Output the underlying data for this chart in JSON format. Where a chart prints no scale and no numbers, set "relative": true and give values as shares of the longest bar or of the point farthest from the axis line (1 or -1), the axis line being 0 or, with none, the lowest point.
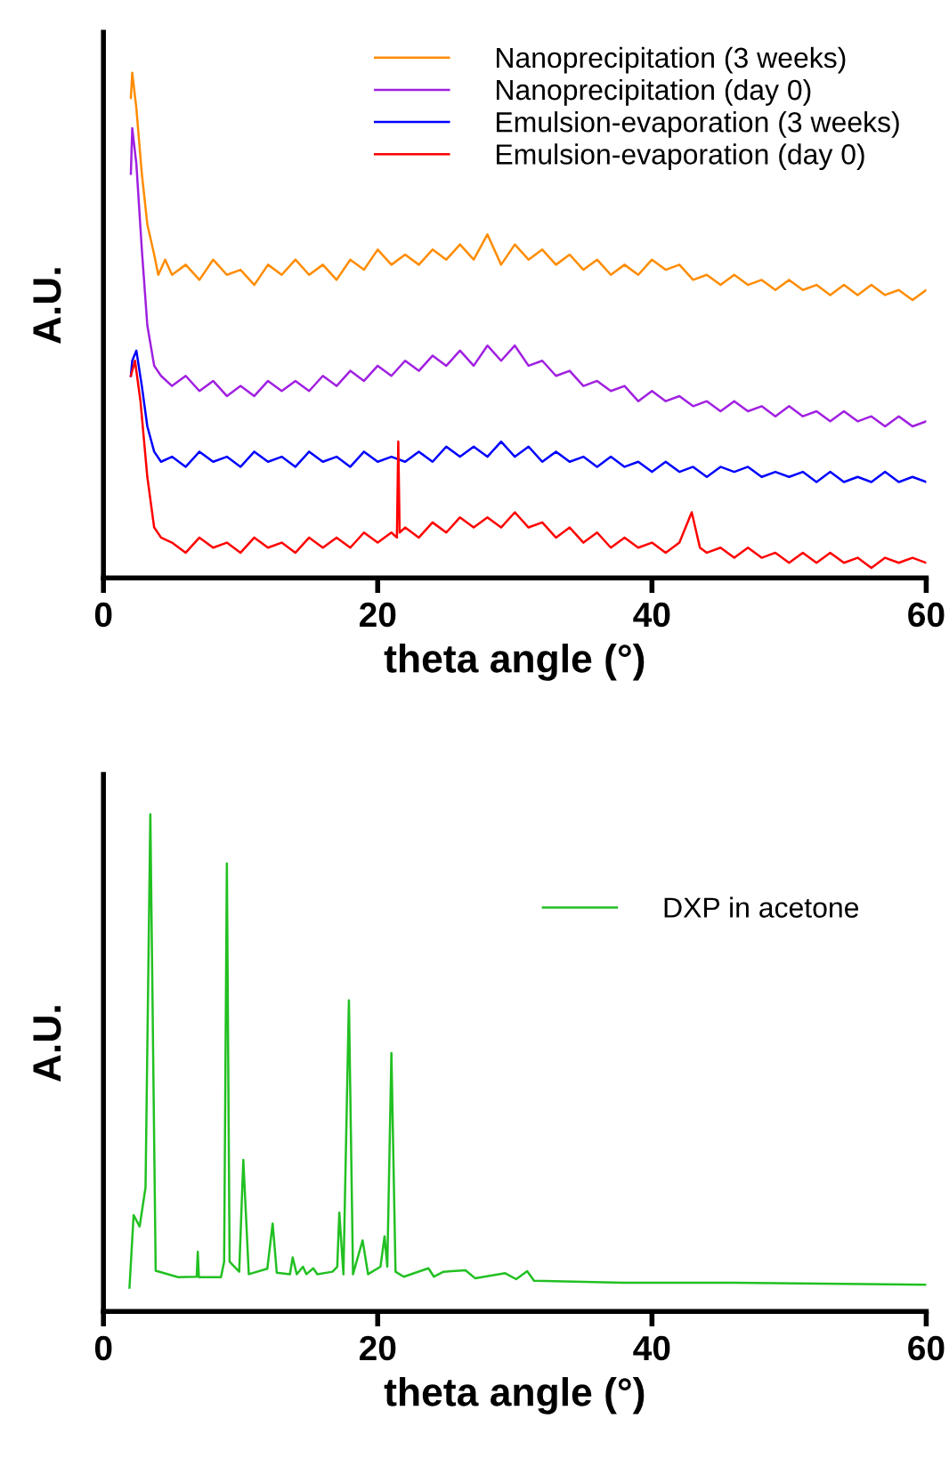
{
  "chart_data": [
    {
      "type": "line",
      "relative": true,
      "xlabel": "theta angle (°)",
      "ylabel": "A.U.",
      "xlim": [
        0,
        60
      ],
      "xticks": [
        0,
        20,
        40,
        60
      ],
      "grid": false,
      "legend": "top right",
      "marker": "none",
      "line_style": "solid",
      "series": [
        {
          "name": "Nanoprecipitation (3 weeks)",
          "color": "#ff8c00",
          "x": [
            2.0,
            2.1,
            2.4,
            2.8,
            3.2,
            3.7,
            4.0,
            4.5,
            5,
            6,
            7,
            8,
            9,
            10,
            11,
            12,
            13,
            14,
            15,
            16,
            17,
            18,
            19,
            20,
            21,
            22,
            23,
            24,
            25,
            26,
            27,
            28,
            29,
            30,
            31,
            32,
            33,
            34,
            35,
            36,
            37,
            38,
            39,
            40,
            41,
            42,
            43,
            44,
            45,
            46,
            47,
            48,
            49,
            50,
            51,
            52,
            53,
            54,
            55,
            56,
            57,
            58,
            59,
            60
          ],
          "values": [
            0.95,
            1.0,
            0.93,
            0.8,
            0.7,
            0.64,
            0.6,
            0.63,
            0.6,
            0.62,
            0.59,
            0.63,
            0.6,
            0.61,
            0.58,
            0.62,
            0.6,
            0.63,
            0.6,
            0.62,
            0.59,
            0.63,
            0.61,
            0.65,
            0.62,
            0.64,
            0.62,
            0.65,
            0.63,
            0.66,
            0.63,
            0.68,
            0.62,
            0.66,
            0.63,
            0.65,
            0.62,
            0.64,
            0.61,
            0.63,
            0.6,
            0.62,
            0.6,
            0.63,
            0.61,
            0.62,
            0.59,
            0.6,
            0.58,
            0.6,
            0.58,
            0.59,
            0.57,
            0.59,
            0.57,
            0.58,
            0.56,
            0.58,
            0.56,
            0.58,
            0.56,
            0.57,
            0.55,
            0.57
          ]
        },
        {
          "name": "Nanoprecipitation (day 0)",
          "color": "#a020e0",
          "x": [
            2.0,
            2.1,
            2.4,
            2.8,
            3.2,
            3.7,
            4.2,
            5,
            6,
            7,
            8,
            9,
            10,
            11,
            12,
            13,
            14,
            15,
            16,
            17,
            18,
            19,
            20,
            21,
            22,
            23,
            24,
            25,
            26,
            27,
            28,
            29,
            30,
            31,
            32,
            33,
            34,
            35,
            36,
            37,
            38,
            39,
            40,
            41,
            42,
            43,
            44,
            45,
            46,
            47,
            48,
            49,
            50,
            51,
            52,
            53,
            54,
            55,
            56,
            57,
            58,
            59,
            60
          ],
          "values": [
            0.8,
            0.89,
            0.82,
            0.65,
            0.5,
            0.42,
            0.4,
            0.38,
            0.4,
            0.37,
            0.39,
            0.36,
            0.38,
            0.36,
            0.39,
            0.37,
            0.39,
            0.37,
            0.4,
            0.38,
            0.41,
            0.39,
            0.42,
            0.4,
            0.43,
            0.41,
            0.44,
            0.42,
            0.45,
            0.42,
            0.46,
            0.43,
            0.46,
            0.42,
            0.43,
            0.4,
            0.41,
            0.38,
            0.39,
            0.37,
            0.38,
            0.35,
            0.37,
            0.35,
            0.36,
            0.34,
            0.35,
            0.33,
            0.35,
            0.33,
            0.34,
            0.32,
            0.34,
            0.32,
            0.33,
            0.31,
            0.33,
            0.31,
            0.32,
            0.3,
            0.32,
            0.3,
            0.31
          ]
        },
        {
          "name": "Emulsion-evaporation (3 weeks)",
          "color": "#0000ff",
          "x": [
            2.0,
            2.1,
            2.4,
            2.8,
            3.2,
            3.7,
            4.2,
            5,
            6,
            7,
            8,
            9,
            10,
            11,
            12,
            13,
            14,
            15,
            16,
            17,
            18,
            19,
            20,
            21,
            22,
            23,
            24,
            25,
            26,
            27,
            28,
            29,
            30,
            31,
            32,
            33,
            34,
            35,
            36,
            37,
            38,
            39,
            40,
            41,
            42,
            43,
            44,
            45,
            46,
            47,
            48,
            49,
            50,
            51,
            52,
            53,
            54,
            55,
            56,
            57,
            58,
            59,
            60
          ],
          "values": [
            0.4,
            0.43,
            0.45,
            0.38,
            0.3,
            0.25,
            0.23,
            0.24,
            0.22,
            0.25,
            0.23,
            0.24,
            0.22,
            0.25,
            0.23,
            0.24,
            0.22,
            0.25,
            0.23,
            0.24,
            0.22,
            0.25,
            0.23,
            0.24,
            0.23,
            0.25,
            0.23,
            0.26,
            0.24,
            0.26,
            0.24,
            0.27,
            0.24,
            0.26,
            0.23,
            0.25,
            0.23,
            0.24,
            0.22,
            0.24,
            0.22,
            0.23,
            0.21,
            0.23,
            0.21,
            0.22,
            0.2,
            0.22,
            0.21,
            0.22,
            0.2,
            0.21,
            0.2,
            0.21,
            0.19,
            0.21,
            0.19,
            0.2,
            0.19,
            0.21,
            0.19,
            0.2,
            0.19
          ]
        },
        {
          "name": "Emulsion-evaporation (day 0)",
          "color": "#ff0000",
          "x": [
            2.0,
            2.3,
            2.7,
            3.2,
            3.7,
            4.2,
            5,
            6,
            7,
            8,
            9,
            10,
            11,
            12,
            13,
            14,
            15,
            16,
            17,
            18,
            19,
            20,
            21,
            21.4,
            21.5,
            21.6,
            22,
            23,
            24,
            25,
            26,
            27,
            28,
            29,
            30,
            31,
            32,
            33,
            34,
            35,
            36,
            37,
            38,
            39,
            40,
            41,
            42,
            42.9,
            43.5,
            44,
            45,
            46,
            47,
            48,
            49,
            50,
            51,
            52,
            53,
            54,
            55,
            56,
            57,
            58,
            59,
            60
          ],
          "values": [
            0.4,
            0.43,
            0.35,
            0.2,
            0.1,
            0.08,
            0.07,
            0.05,
            0.08,
            0.06,
            0.07,
            0.05,
            0.08,
            0.06,
            0.07,
            0.05,
            0.08,
            0.06,
            0.08,
            0.06,
            0.09,
            0.07,
            0.09,
            0.08,
            0.27,
            0.09,
            0.1,
            0.08,
            0.11,
            0.09,
            0.12,
            0.1,
            0.12,
            0.1,
            0.13,
            0.1,
            0.11,
            0.08,
            0.1,
            0.07,
            0.09,
            0.06,
            0.08,
            0.06,
            0.07,
            0.05,
            0.07,
            0.13,
            0.06,
            0.05,
            0.06,
            0.04,
            0.06,
            0.04,
            0.05,
            0.03,
            0.05,
            0.03,
            0.05,
            0.03,
            0.04,
            0.02,
            0.04,
            0.03,
            0.04,
            0.03
          ]
        }
      ]
    },
    {
      "type": "line",
      "relative": true,
      "xlabel": "theta angle (°)",
      "ylabel": "A.U.",
      "xlim": [
        0,
        60
      ],
      "xticks": [
        0,
        20,
        40,
        60
      ],
      "grid": false,
      "legend": "top right",
      "marker": "none",
      "line_style": "solid",
      "series": [
        {
          "name": "DXP in acetone",
          "color": "#22c022",
          "x": [
            1.9,
            2.2,
            2.64,
            3.07,
            3.42,
            3.81,
            5.45,
            6.8,
            6.88,
            6.96,
            8.57,
            8.8,
            9.0,
            9.2,
            9.9,
            10.2,
            10.6,
            11.95,
            12.34,
            12.64,
            13.6,
            13.8,
            14.1,
            14.55,
            14.8,
            15.3,
            15.6,
            16.7,
            17.05,
            17.2,
            17.5,
            17.9,
            18.2,
            18.9,
            19.3,
            20.2,
            20.5,
            20.7,
            21.0,
            21.3,
            21.9,
            23.7,
            24.1,
            24.8,
            26.4,
            27.1,
            29.3,
            30.1,
            30.9,
            31.4,
            37.9,
            45.9,
            60
          ],
          "values": [
            0.048,
            0.194,
            0.171,
            0.25,
            1.0,
            0.082,
            0.069,
            0.07,
            0.12,
            0.069,
            0.069,
            0.1,
            0.901,
            0.1,
            0.08,
            0.305,
            0.075,
            0.086,
            0.177,
            0.078,
            0.075,
            0.109,
            0.075,
            0.09,
            0.075,
            0.087,
            0.075,
            0.08,
            0.09,
            0.199,
            0.075,
            0.626,
            0.075,
            0.143,
            0.075,
            0.09,
            0.151,
            0.09,
            0.52,
            0.08,
            0.07,
            0.087,
            0.07,
            0.08,
            0.083,
            0.067,
            0.077,
            0.065,
            0.081,
            0.062,
            0.058,
            0.058,
            0.054
          ]
        }
      ]
    }
  ]
}
